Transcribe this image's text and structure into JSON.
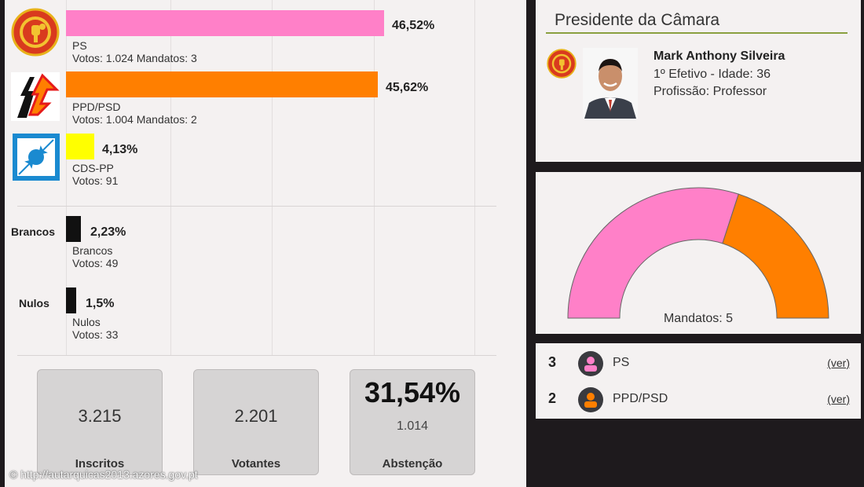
{
  "parties": [
    {
      "name": "PS",
      "percent_label": "46,52%",
      "percent": 46.52,
      "votes_line": "Votos: 1.024 Mandatos: 3",
      "color": "#ff80c8",
      "logo": "ps-fist-rose-logo"
    },
    {
      "name": "PPD/PSD",
      "percent_label": "45,62%",
      "percent": 45.62,
      "votes_line": "Votos: 1.004 Mandatos: 2",
      "color": "#ff7f00",
      "logo": "psd-arrows-logo"
    },
    {
      "name": "CDS-PP",
      "percent_label": "4,13%",
      "percent": 4.13,
      "votes_line": "Votos: 91",
      "color": "#ffff00",
      "logo": "cds-arrows-logo"
    }
  ],
  "blank": {
    "side_label": "Brancos",
    "name": "Brancos",
    "percent_label": "2,23%",
    "percent": 2.23,
    "votes_line": "Votos: 49",
    "color": "#111111"
  },
  "null_votes": {
    "side_label": "Nulos",
    "name": "Nulos",
    "percent_label": "1,5%",
    "percent": 1.5,
    "votes_line": "Votos: 33",
    "color": "#111111"
  },
  "stats": {
    "inscritos": {
      "value": "3.215",
      "label": "Inscritos"
    },
    "votantes": {
      "value": "2.201",
      "label": "Votantes"
    },
    "abstencao": {
      "percent_label": "31,54%",
      "value": "1.014",
      "label": "Abstenção"
    }
  },
  "credit": "© http://autarquicas2013.azores.gov.pt",
  "president": {
    "heading": "Presidente da Câmara",
    "name": "Mark Anthony Silveira",
    "line1": "1º Efetivo - Idade: 36",
    "line2": "Profissão: Professor",
    "party_logo": "ps-fist-rose-logo"
  },
  "seats": {
    "total_label": "Mandatos: 5",
    "total": 5,
    "rows": [
      {
        "count": "3",
        "party": "PS",
        "link": "(ver)",
        "color": "#ff80c8"
      },
      {
        "count": "2",
        "party": "PPD/PSD",
        "link": "(ver)",
        "color": "#ff7f00"
      }
    ]
  },
  "colors": {
    "ps": "#ff80c8",
    "psd": "#ff7f00",
    "cds": "#ffff00",
    "rule": "#8aa040",
    "background": "#1e1a1d"
  }
}
